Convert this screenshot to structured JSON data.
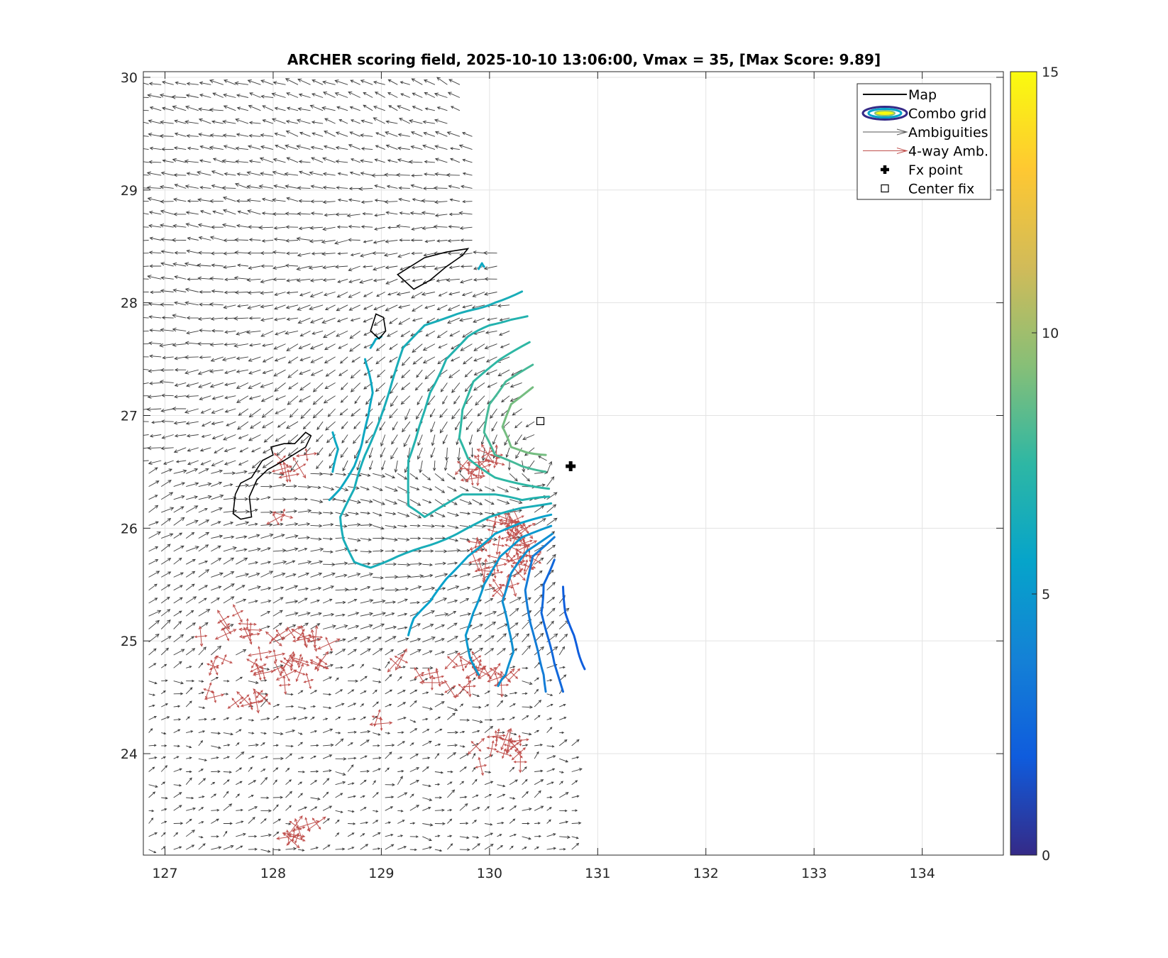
{
  "chart_data": {
    "type": "contour",
    "title": "ARCHER scoring field, 2025-10-10 13:06:00, Vmax = 35, [Max Score: 9.89]",
    "xlabel": "",
    "ylabel": "",
    "xlim": [
      126.8,
      134.75
    ],
    "ylim": [
      23.1,
      30.05
    ],
    "xticks": [
      127,
      128,
      129,
      130,
      131,
      132,
      133,
      134
    ],
    "yticks": [
      24,
      25,
      26,
      27,
      28,
      29,
      30
    ],
    "grid": true,
    "legend": {
      "placement": "top-right",
      "entries": [
        {
          "label": "Map",
          "symbol": "line",
          "color": "#000000"
        },
        {
          "label": "Combo grid",
          "symbol": "ellipse",
          "color": "#3a2fb8"
        },
        {
          "label": "Ambiguities",
          "symbol": "arrow",
          "color": "#555555"
        },
        {
          "label": "4-way Amb.",
          "symbol": "arrow",
          "color": "#c0504d"
        },
        {
          "label": "Fx point",
          "symbol": "plus",
          "color": "#000000"
        },
        {
          "label": "Center fix",
          "symbol": "square",
          "color": "#000000"
        }
      ]
    },
    "colorbar": {
      "range": [
        0,
        15
      ],
      "ticks": [
        0,
        5,
        10,
        15
      ],
      "colormap": "parula",
      "stops": [
        "#352a87",
        "#0f5cdd",
        "#1481d6",
        "#06a4ca",
        "#2eb7a4",
        "#87bf77",
        "#d1bb59",
        "#fec832",
        "#f9fb0e"
      ]
    },
    "fx_point": {
      "lon": 130.75,
      "lat": 26.55
    },
    "center_fix": {
      "lon": 130.47,
      "lat": 26.95
    },
    "map_outlines": [
      [
        [
          127.63,
          26.13
        ],
        [
          127.65,
          26.3
        ],
        [
          127.7,
          26.4
        ],
        [
          127.8,
          26.45
        ],
        [
          127.9,
          26.6
        ],
        [
          128.0,
          26.65
        ],
        [
          127.98,
          26.72
        ],
        [
          128.1,
          26.75
        ],
        [
          128.2,
          26.75
        ],
        [
          128.3,
          26.85
        ],
        [
          128.35,
          26.82
        ],
        [
          128.3,
          26.72
        ],
        [
          128.1,
          26.6
        ],
        [
          127.95,
          26.52
        ],
        [
          127.85,
          26.43
        ],
        [
          127.78,
          26.28
        ],
        [
          127.8,
          26.1
        ],
        [
          127.7,
          26.08
        ],
        [
          127.63,
          26.13
        ]
      ],
      [
        [
          129.15,
          28.25
        ],
        [
          129.4,
          28.4
        ],
        [
          129.6,
          28.45
        ],
        [
          129.8,
          28.48
        ],
        [
          129.75,
          28.42
        ],
        [
          129.6,
          28.32
        ],
        [
          129.45,
          28.2
        ],
        [
          129.3,
          28.12
        ],
        [
          129.15,
          28.25
        ]
      ],
      [
        [
          128.9,
          27.75
        ],
        [
          128.95,
          27.9
        ],
        [
          129.02,
          27.87
        ],
        [
          129.04,
          27.75
        ],
        [
          128.98,
          27.68
        ],
        [
          128.9,
          27.75
        ]
      ]
    ],
    "score_contours": [
      {
        "level": 9,
        "points": [
          [
            130.4,
            27.25
          ],
          [
            130.2,
            27.1
          ],
          [
            130.12,
            26.9
          ],
          [
            130.2,
            26.72
          ],
          [
            130.35,
            26.67
          ],
          [
            130.52,
            26.65
          ]
        ]
      },
      {
        "level": 8,
        "points": [
          [
            130.4,
            27.45
          ],
          [
            130.15,
            27.3
          ],
          [
            130.0,
            27.1
          ],
          [
            129.95,
            26.85
          ],
          [
            130.05,
            26.65
          ],
          [
            130.3,
            26.55
          ],
          [
            130.52,
            26.5
          ]
        ]
      },
      {
        "level": 7.5,
        "points": [
          [
            130.37,
            27.65
          ],
          [
            130.1,
            27.5
          ],
          [
            129.85,
            27.3
          ],
          [
            129.75,
            27.05
          ],
          [
            129.72,
            26.8
          ],
          [
            129.8,
            26.62
          ],
          [
            130.05,
            26.45
          ],
          [
            130.35,
            26.38
          ],
          [
            130.55,
            26.35
          ]
        ]
      },
      {
        "level": 7,
        "points": [
          [
            130.55,
            26.28
          ],
          [
            130.3,
            26.25
          ],
          [
            130.05,
            26.3
          ],
          [
            129.75,
            26.3
          ],
          [
            129.4,
            26.1
          ],
          [
            129.25,
            26.2
          ],
          [
            129.25,
            26.6
          ],
          [
            129.35,
            26.9
          ],
          [
            129.45,
            27.2
          ],
          [
            129.6,
            27.5
          ],
          [
            129.8,
            27.7
          ],
          [
            130.0,
            27.8
          ],
          [
            130.2,
            27.85
          ],
          [
            130.35,
            27.88
          ]
        ]
      },
      {
        "level": 6.5,
        "points": [
          [
            130.57,
            26.22
          ],
          [
            130.3,
            26.18
          ],
          [
            130.0,
            26.1
          ],
          [
            129.7,
            25.95
          ],
          [
            129.45,
            25.85
          ],
          [
            129.15,
            25.75
          ],
          [
            128.9,
            25.65
          ],
          [
            128.75,
            25.7
          ],
          [
            128.65,
            25.9
          ],
          [
            128.62,
            26.1
          ],
          [
            128.75,
            26.35
          ],
          [
            128.85,
            26.65
          ],
          [
            129.0,
            27.0
          ],
          [
            129.1,
            27.3
          ],
          [
            129.2,
            27.6
          ],
          [
            129.4,
            27.8
          ],
          [
            129.7,
            27.9
          ],
          [
            129.9,
            27.95
          ],
          [
            130.05,
            28.0
          ],
          [
            130.3,
            28.1
          ]
        ]
      },
      {
        "level": 6,
        "points": [
          [
            128.52,
            26.25
          ],
          [
            128.62,
            26.35
          ],
          [
            128.75,
            26.55
          ],
          [
            128.82,
            26.75
          ],
          [
            128.88,
            27.0
          ],
          [
            128.92,
            27.2
          ],
          [
            128.88,
            27.4
          ],
          [
            128.85,
            27.5
          ]
        ]
      },
      {
        "level": 6,
        "points": [
          [
            128.55,
            26.5
          ],
          [
            128.6,
            26.7
          ],
          [
            128.55,
            26.85
          ]
        ]
      },
      {
        "level": 6,
        "points": [
          [
            128.9,
            27.6
          ],
          [
            128.95,
            27.68
          ],
          [
            129.0,
            27.7
          ]
        ]
      },
      {
        "level": 6,
        "points": [
          [
            129.9,
            28.3
          ],
          [
            129.93,
            28.35
          ],
          [
            129.95,
            28.32
          ]
        ]
      },
      {
        "level": 5.5,
        "points": [
          [
            130.57,
            26.12
          ],
          [
            130.3,
            26.05
          ],
          [
            130.05,
            25.95
          ],
          [
            129.8,
            25.75
          ],
          [
            129.6,
            25.55
          ],
          [
            129.45,
            25.35
          ],
          [
            129.3,
            25.2
          ],
          [
            129.25,
            25.05
          ]
        ]
      },
      {
        "level": 5,
        "points": [
          [
            130.57,
            26.02
          ],
          [
            130.3,
            25.92
          ],
          [
            130.1,
            25.75
          ],
          [
            129.95,
            25.5
          ],
          [
            129.85,
            25.25
          ],
          [
            129.78,
            25.05
          ],
          [
            129.82,
            24.85
          ],
          [
            129.9,
            24.7
          ]
        ]
      },
      {
        "level": 4.5,
        "points": [
          [
            130.58,
            25.95
          ],
          [
            130.35,
            25.8
          ],
          [
            130.2,
            25.6
          ],
          [
            130.12,
            25.35
          ],
          [
            130.18,
            25.1
          ],
          [
            130.22,
            24.9
          ],
          [
            130.15,
            24.7
          ],
          [
            130.08,
            24.6
          ]
        ]
      },
      {
        "level": 3.5,
        "points": [
          [
            130.6,
            25.92
          ],
          [
            130.4,
            25.75
          ],
          [
            130.33,
            25.45
          ],
          [
            130.38,
            25.15
          ],
          [
            130.45,
            24.9
          ],
          [
            130.5,
            24.7
          ],
          [
            130.52,
            24.55
          ]
        ]
      },
      {
        "level": 2.5,
        "points": [
          [
            130.6,
            25.72
          ],
          [
            130.5,
            25.5
          ],
          [
            130.48,
            25.25
          ],
          [
            130.55,
            25.0
          ],
          [
            130.6,
            24.8
          ],
          [
            130.68,
            24.55
          ]
        ]
      },
      {
        "level": 2,
        "points": [
          [
            130.68,
            25.48
          ],
          [
            130.7,
            25.25
          ],
          [
            130.78,
            25.05
          ],
          [
            130.82,
            24.9
          ],
          [
            130.88,
            24.75
          ]
        ]
      }
    ],
    "four_way_clusters": [
      {
        "lon": 127.6,
        "lat": 25.0,
        "rx": 0.3,
        "ry": 0.3,
        "n": 12
      },
      {
        "lon": 128.2,
        "lat": 24.85,
        "rx": 0.4,
        "ry": 0.25,
        "n": 28
      },
      {
        "lon": 127.7,
        "lat": 24.5,
        "rx": 0.4,
        "ry": 0.12,
        "n": 8
      },
      {
        "lon": 129.8,
        "lat": 24.7,
        "rx": 0.45,
        "ry": 0.15,
        "n": 20
      },
      {
        "lon": 130.1,
        "lat": 24.0,
        "rx": 0.25,
        "ry": 0.18,
        "n": 14
      },
      {
        "lon": 130.15,
        "lat": 25.75,
        "rx": 0.3,
        "ry": 0.35,
        "n": 34
      },
      {
        "lon": 129.95,
        "lat": 26.55,
        "rx": 0.22,
        "ry": 0.15,
        "n": 12
      },
      {
        "lon": 130.25,
        "lat": 26.05,
        "rx": 0.15,
        "ry": 0.12,
        "n": 8
      },
      {
        "lon": 128.25,
        "lat": 26.55,
        "rx": 0.2,
        "ry": 0.15,
        "n": 6
      },
      {
        "lon": 128.05,
        "lat": 26.1,
        "rx": 0.05,
        "ry": 0.05,
        "n": 2
      },
      {
        "lon": 128.3,
        "lat": 23.3,
        "rx": 0.2,
        "ry": 0.12,
        "n": 8
      },
      {
        "lon": 129.15,
        "lat": 24.8,
        "rx": 0.05,
        "ry": 0.05,
        "n": 2
      },
      {
        "lon": 129.0,
        "lat": 24.3,
        "rx": 0.05,
        "ry": 0.05,
        "n": 2
      }
    ]
  }
}
